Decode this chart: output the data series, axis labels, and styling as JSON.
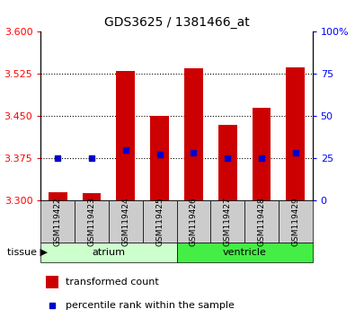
{
  "title": "GDS3625 / 1381466_at",
  "samples": [
    "GSM119422",
    "GSM119423",
    "GSM119424",
    "GSM119425",
    "GSM119426",
    "GSM119427",
    "GSM119428",
    "GSM119429"
  ],
  "transformed_counts": [
    3.315,
    3.313,
    3.53,
    3.45,
    3.535,
    3.435,
    3.465,
    3.537
  ],
  "percentile_ranks": [
    25,
    25,
    30,
    27,
    28,
    25,
    25,
    28
  ],
  "bar_bottom": 3.3,
  "ylim_left": [
    3.3,
    3.6
  ],
  "ylim_right": [
    0,
    100
  ],
  "yticks_left": [
    3.3,
    3.375,
    3.45,
    3.525,
    3.6
  ],
  "yticks_right": [
    0,
    25,
    50,
    75,
    100
  ],
  "bar_color": "#cc0000",
  "dot_color": "#0000cc",
  "tissue_groups": [
    {
      "name": "atrium",
      "indices": [
        0,
        1,
        2,
        3
      ],
      "color": "#ccffcc"
    },
    {
      "name": "ventricle",
      "indices": [
        4,
        5,
        6,
        7
      ],
      "color": "#44ee44"
    }
  ],
  "tissue_label": "tissue",
  "legend_bar_label": "transformed count",
  "legend_dot_label": "percentile rank within the sample",
  "sample_bg_color": "#cccccc",
  "atrium_color": "#ccffcc",
  "ventricle_color": "#44ee44"
}
